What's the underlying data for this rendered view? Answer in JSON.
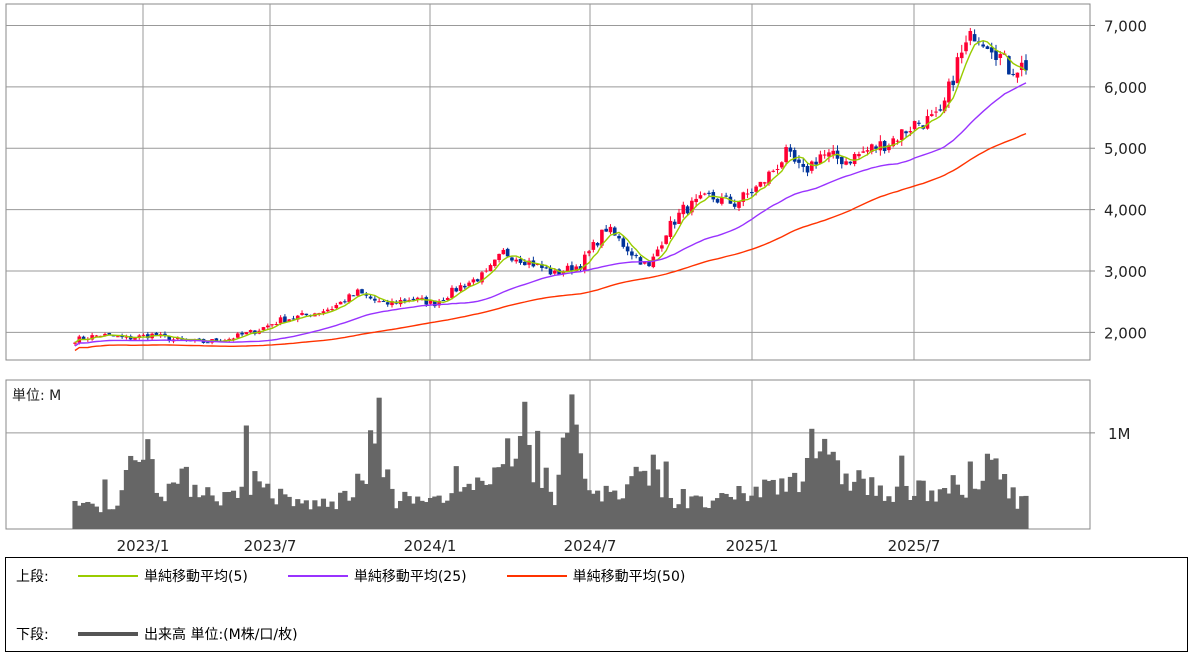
{
  "chart_data": [
    {
      "type": "candlestick",
      "panel": "price",
      "ylim": [
        1550,
        7350
      ],
      "y_ticks": [
        "2,000",
        "3,000",
        "4,000",
        "5,000",
        "6,000",
        "7,000"
      ],
      "y_tick_values": [
        2000,
        3000,
        4000,
        5000,
        6000,
        7000
      ],
      "x_tick_labels": [
        "2023/1",
        "2023/7",
        "2024/1",
        "2024/7",
        "2025/1",
        "2025/7"
      ],
      "grid": true,
      "close_profile": [
        [
          0,
          1880
        ],
        [
          6,
          1960
        ],
        [
          12,
          1900
        ],
        [
          18,
          1960
        ],
        [
          24,
          1870
        ],
        [
          30,
          1840
        ],
        [
          36,
          1900
        ],
        [
          42,
          2020
        ],
        [
          48,
          2200
        ],
        [
          54,
          2280
        ],
        [
          60,
          2400
        ],
        [
          66,
          2650
        ],
        [
          72,
          2450
        ],
        [
          78,
          2550
        ],
        [
          84,
          2480
        ],
        [
          90,
          2750
        ],
        [
          96,
          2950
        ],
        [
          100,
          3300
        ],
        [
          106,
          3150
        ],
        [
          112,
          2950
        ],
        [
          118,
          3100
        ],
        [
          124,
          3700
        ],
        [
          130,
          3300
        ],
        [
          134,
          3050
        ],
        [
          138,
          3650
        ],
        [
          142,
          4000
        ],
        [
          148,
          4200
        ],
        [
          154,
          4100
        ],
        [
          160,
          4400
        ],
        [
          166,
          4900
        ],
        [
          170,
          4600
        ],
        [
          174,
          4900
        ],
        [
          180,
          4800
        ],
        [
          186,
          5000
        ],
        [
          190,
          5100
        ],
        [
          196,
          5400
        ],
        [
          202,
          5500
        ],
        [
          206,
          6400
        ],
        [
          210,
          6900
        ],
        [
          214,
          6700
        ],
        [
          218,
          6300
        ],
        [
          222,
          6350
        ]
      ],
      "series": [
        {
          "name": "単純移動平均(5)",
          "color": "#99cc00",
          "window": 5
        },
        {
          "name": "単純移動平均(25)",
          "color": "#9933ff",
          "window": 25
        },
        {
          "name": "単純移動平均(50)",
          "color": "#ff3300",
          "window": 50
        }
      ],
      "up_color": "#ff0033",
      "down_color": "#003399"
    },
    {
      "type": "bar",
      "panel": "volume",
      "unit_label": "単位: M",
      "y_ticks": [
        "1M"
      ],
      "ylim": [
        0,
        1.55
      ],
      "bar_color": "#666666",
      "volume_profile": [
        [
          0,
          0.3
        ],
        [
          10,
          0.28
        ],
        [
          16,
          1.1
        ],
        [
          20,
          0.45
        ],
        [
          26,
          0.55
        ],
        [
          36,
          0.35
        ],
        [
          40,
          0.6
        ],
        [
          50,
          0.3
        ],
        [
          60,
          0.28
        ],
        [
          68,
          0.55
        ],
        [
          70,
          1.2
        ],
        [
          74,
          0.35
        ],
        [
          86,
          0.3
        ],
        [
          96,
          0.5
        ],
        [
          98,
          1.0
        ],
        [
          104,
          0.85
        ],
        [
          112,
          0.4
        ],
        [
          116,
          1.3
        ],
        [
          120,
          0.45
        ],
        [
          128,
          0.38
        ],
        [
          134,
          0.75
        ],
        [
          140,
          0.3
        ],
        [
          150,
          0.3
        ],
        [
          160,
          0.45
        ],
        [
          170,
          0.65
        ],
        [
          172,
          1.15
        ],
        [
          176,
          0.7
        ],
        [
          184,
          0.55
        ],
        [
          190,
          0.35
        ],
        [
          198,
          0.45
        ],
        [
          204,
          0.5
        ],
        [
          210,
          0.35
        ],
        [
          214,
          0.85
        ],
        [
          220,
          0.35
        ],
        [
          222,
          0.3
        ]
      ]
    }
  ],
  "legend": {
    "upper_label": "上段:",
    "lower_label": "下段:",
    "items": [
      {
        "name": "単純移動平均(5)",
        "color": "#99cc00"
      },
      {
        "name": "単純移動平均(25)",
        "color": "#9933ff"
      },
      {
        "name": "単純移動平均(50)",
        "color": "#ff3300"
      }
    ],
    "volume_item": "出来高 単位:(M株/口/枚)",
    "volume_color": "#555555"
  }
}
